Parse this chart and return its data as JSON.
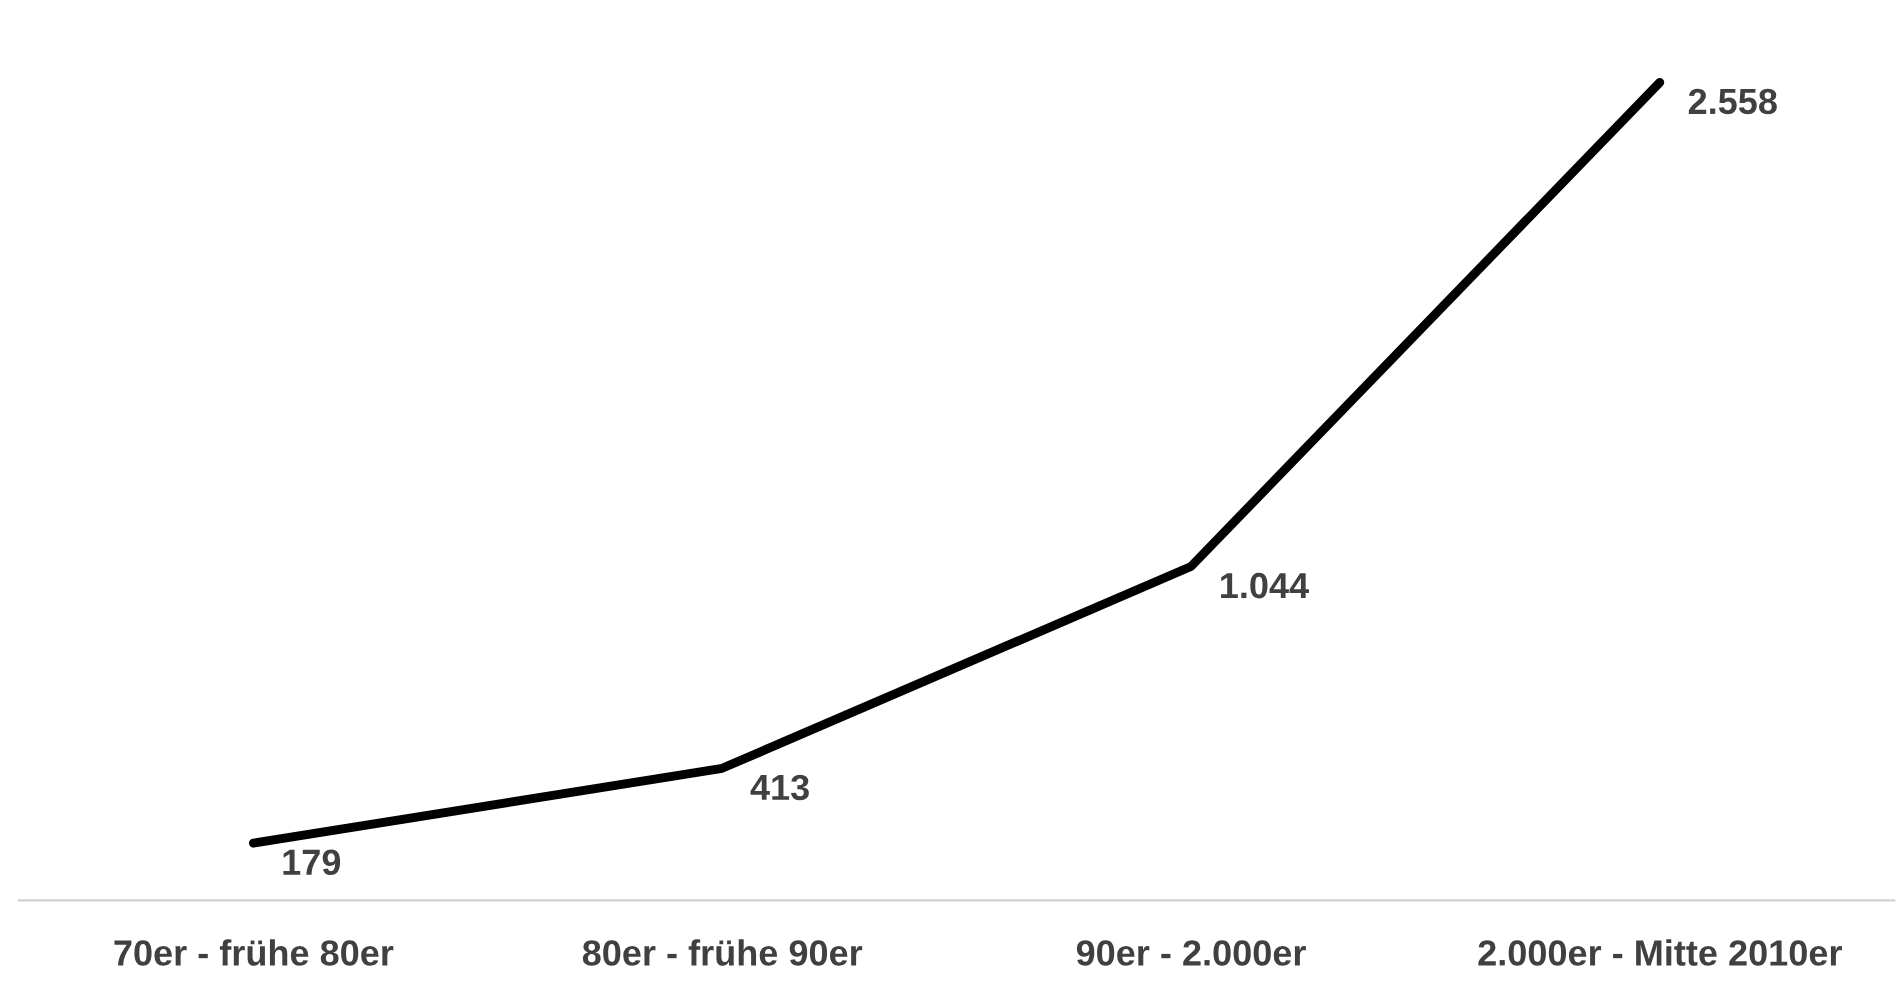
{
  "chart_data": {
    "type": "line",
    "categories": [
      "70er - frühe 80er",
      "80er - frühe 90er",
      "90er - 2.000er",
      "2.000er - Mitte 2010er"
    ],
    "series": [
      {
        "color": "#000000",
        "values": [
          179,
          413,
          1044,
          2558
        ],
        "value_labels": [
          "179",
          "413",
          "1.044",
          "2.558"
        ]
      }
    ],
    "grid": false,
    "legend": false,
    "tick_labels": "x",
    "marker": "none",
    "line_style": "solid"
  }
}
